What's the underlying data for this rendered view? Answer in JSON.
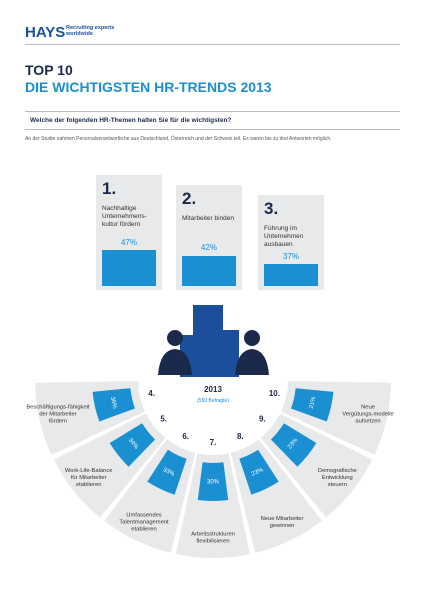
{
  "header": {
    "logo": "HAYS",
    "tagline": "Recruiting experts worldwide"
  },
  "title": {
    "line1": "TOP 10",
    "line2": "DIE WICHTIGSTEN HR-TRENDS 2013"
  },
  "question": "Welche der folgenden HR-Themen halten Sie für die wichtigsten?",
  "note": "An der Studie nahmen Personalverantwortliche aus Deutschland, Österreich und der Schweiz teil. Es waren bis zu drei Antworten möglich.",
  "top3": [
    {
      "rank": "1.",
      "label": "Nachhaltige Unternehmens-kultur fördern",
      "percent": "47%"
    },
    {
      "rank": "2.",
      "label": "Mitarbeiter binden",
      "percent": "42%"
    },
    {
      "rank": "3.",
      "label": "Führung im Unternehmen ausbauen",
      "percent": "37%"
    }
  ],
  "center": {
    "year": "2013",
    "respondents": "(550 Befragte)"
  },
  "fan": [
    {
      "rank": "4.",
      "label": "Beschäftigungs-fähigkeit der Mitarbeiter fördern",
      "percent": "36%"
    },
    {
      "rank": "5.",
      "label": "Work-Life-Balance für Mitarbeiter etablieren",
      "percent": "34%"
    },
    {
      "rank": "6.",
      "label": "Umfassendes Talentmanagement etablieren",
      "percent": "33%"
    },
    {
      "rank": "7.",
      "label": "Arbeitsstrukturen flexibilisieren",
      "percent": "30%"
    },
    {
      "rank": "8.",
      "label": "Neue Mitarbeiter gewinnen",
      "percent": "23%"
    },
    {
      "rank": "9.",
      "label": "Demografische Entwicklung steuern",
      "percent": "23%"
    },
    {
      "rank": "10.",
      "label": "Neue Vergütungs-modelle aufsetzen",
      "percent": "21%"
    }
  ]
}
